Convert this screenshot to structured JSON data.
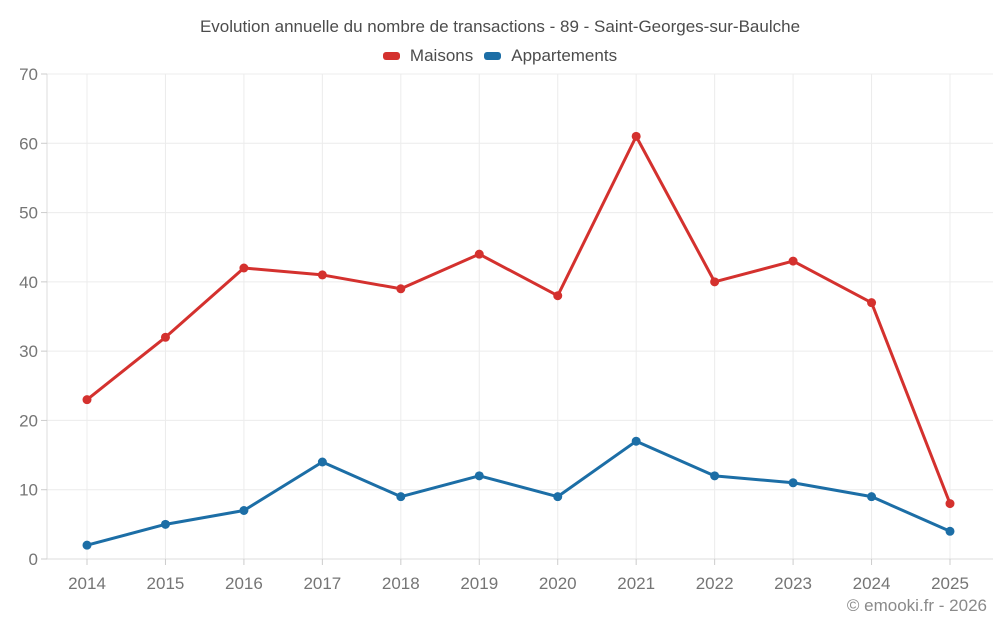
{
  "chart_data": {
    "type": "line",
    "title": "Evolution annuelle du nombre de transactions - 89 - Saint-Georges-sur-Baulche",
    "categories": [
      "2014",
      "2015",
      "2016",
      "2017",
      "2018",
      "2019",
      "2020",
      "2021",
      "2022",
      "2023",
      "2024",
      "2025"
    ],
    "series": [
      {
        "name": "Maisons",
        "color": "#d4312e",
        "values": [
          23,
          32,
          42,
          41,
          39,
          44,
          38,
          61,
          40,
          43,
          37,
          8
        ]
      },
      {
        "name": "Appartements",
        "color": "#1c6ea6",
        "values": [
          2,
          5,
          7,
          14,
          9,
          12,
          9,
          17,
          12,
          11,
          9,
          4
        ]
      }
    ],
    "xlabel": "",
    "ylabel": "",
    "ylim": [
      0,
      70
    ],
    "ytick_step": 10,
    "yticks": [
      "0",
      "10",
      "20",
      "30",
      "40",
      "50",
      "60",
      "70"
    ],
    "grid": true,
    "legend_position": "top-center"
  },
  "footer": {
    "credit": "© emooki.fr - 2026"
  },
  "theme": {
    "background": "#ffffff",
    "title_color": "#4c4c4c",
    "legend_text_color": "#4c4c4c",
    "axis_label_color": "#757575",
    "grid_color": "#ececec",
    "axis_line_color": "#dcdcdc",
    "tick_color": "#cccccc",
    "footer_color": "#8a8a8a"
  }
}
